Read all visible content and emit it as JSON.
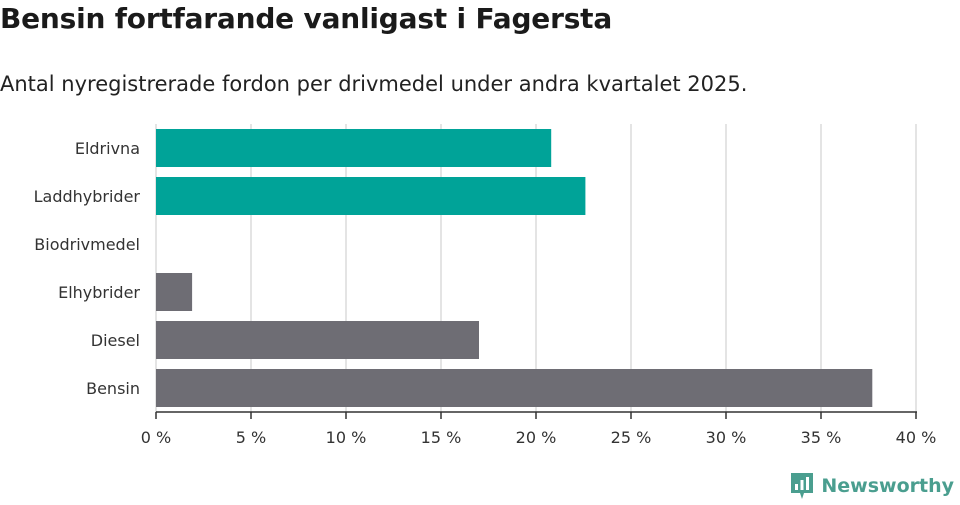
{
  "header": {
    "title": "Bensin fortfarande vanligast i Fagersta",
    "subtitle": "Antal nyregistrerade fordon per drivmedel under andra kvartalet 2025."
  },
  "brand": {
    "name": "Newsworthy",
    "icon": "newsworthy-logo-icon",
    "color": "#4a9e8f"
  },
  "chart_data": {
    "type": "bar",
    "orientation": "horizontal",
    "title": "Bensin fortfarande vanligast i Fagersta",
    "subtitle": "Antal nyregistrerade fordon per drivmedel under andra kvartalet 2025.",
    "categories": [
      "Eldrivna",
      "Laddhybrider",
      "Biodrivmedel",
      "Elhybrider",
      "Diesel",
      "Bensin"
    ],
    "values": [
      20.8,
      22.6,
      0,
      1.9,
      17.0,
      37.7
    ],
    "unit": "%",
    "xlim": [
      0,
      40
    ],
    "xticks": [
      0,
      5,
      10,
      15,
      20,
      25,
      30,
      35,
      40
    ],
    "tick_labels": [
      "0 %",
      "5 %",
      "10 %",
      "15 %",
      "20 %",
      "25 %",
      "30 %",
      "35 %",
      "40 %"
    ],
    "colors": {
      "Eldrivna": "#00a398",
      "Laddhybrider": "#00a398",
      "Biodrivmedel": "#00a398",
      "Elhybrider": "#6e6d74",
      "Diesel": "#6e6d74",
      "Bensin": "#6e6d74"
    },
    "grid": true,
    "legend": "none"
  }
}
